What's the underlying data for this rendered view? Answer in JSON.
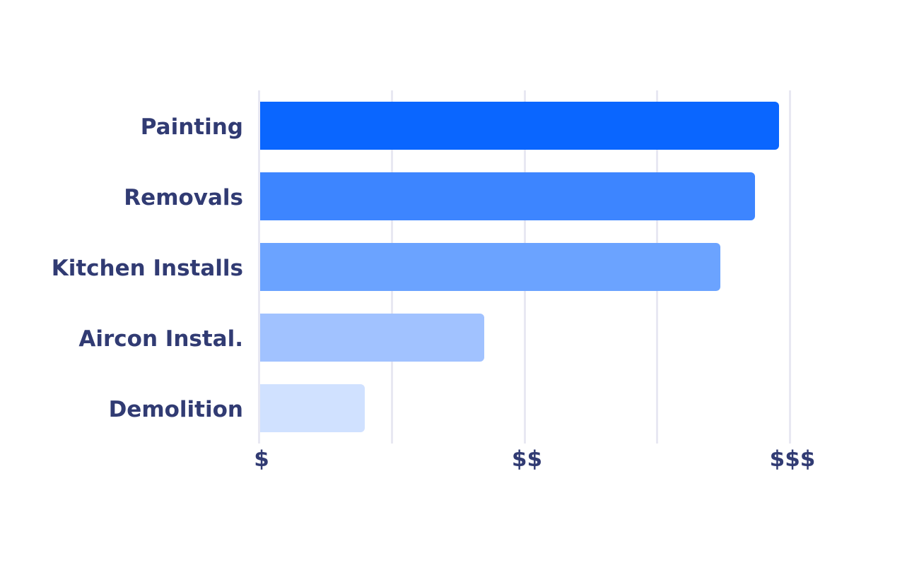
{
  "chart_data": {
    "type": "bar",
    "orientation": "horizontal",
    "title": "",
    "xlabel": "",
    "ylabel": "",
    "categories": [
      "Painting",
      "Removals",
      "Kitchen Installs",
      "Aircon Instal.",
      "Demolition"
    ],
    "values": [
      1.96,
      1.87,
      1.74,
      0.85,
      0.4
    ],
    "colors": [
      "#0a66ff",
      "#3d85ff",
      "#6ba3ff",
      "#a1c2ff",
      "#d0e1ff"
    ],
    "x_ticks": [
      {
        "value": 0,
        "label": "$"
      },
      {
        "value": 1,
        "label": "$$"
      },
      {
        "value": 2,
        "label": "$$$"
      }
    ],
    "xlim": [
      0,
      2
    ],
    "grid": true,
    "gridline_values": [
      0,
      0.5,
      1,
      1.5,
      2
    ],
    "legend": null
  }
}
